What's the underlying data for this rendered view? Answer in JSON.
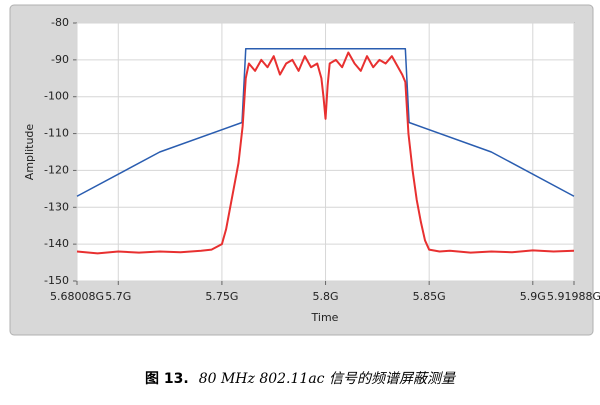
{
  "chart_data": {
    "type": "line",
    "x_label": "Time",
    "y_label": "Amplitude",
    "xlim": [
      5.68008,
      5.91988
    ],
    "ylim": [
      -150,
      -80
    ],
    "xticks": [
      {
        "value": 5.68008,
        "label": "5.68008G"
      },
      {
        "value": 5.7,
        "label": "5.7G"
      },
      {
        "value": 5.75,
        "label": "5.75G"
      },
      {
        "value": 5.8,
        "label": "5.8G"
      },
      {
        "value": 5.85,
        "label": "5.85G"
      },
      {
        "value": 5.9,
        "label": "5.9G"
      },
      {
        "value": 5.91988,
        "label": "5.91988G"
      }
    ],
    "yticks": [
      -80,
      -90,
      -100,
      -110,
      -120,
      -130,
      -140,
      -150
    ],
    "grid": true,
    "series": [
      {
        "color": "#2a5db0",
        "x": [
          5.68008,
          5.72,
          5.7597,
          5.7615,
          5.8385,
          5.8403,
          5.88,
          5.91988
        ],
        "values": [
          -127,
          -115,
          -107,
          -87,
          -87,
          -107,
          -115,
          -127
        ]
      },
      {
        "color": "#e83030",
        "x": [
          5.68008,
          5.69,
          5.7,
          5.71,
          5.72,
          5.73,
          5.74,
          5.745,
          5.75,
          5.752,
          5.754,
          5.756,
          5.758,
          5.76,
          5.7615,
          5.763,
          5.766,
          5.769,
          5.772,
          5.775,
          5.778,
          5.781,
          5.784,
          5.787,
          5.79,
          5.793,
          5.796,
          5.798,
          5.799,
          5.8,
          5.801,
          5.802,
          5.805,
          5.808,
          5.811,
          5.814,
          5.817,
          5.82,
          5.823,
          5.826,
          5.829,
          5.832,
          5.835,
          5.837,
          5.8385,
          5.84,
          5.842,
          5.844,
          5.846,
          5.848,
          5.85,
          5.855,
          5.86,
          5.87,
          5.88,
          5.89,
          5.9,
          5.91,
          5.91988
        ],
        "values": [
          -142,
          -142.5,
          -142,
          -142.3,
          -142,
          -142.2,
          -141.8,
          -141.5,
          -140,
          -136,
          -130,
          -124,
          -118,
          -108,
          -95,
          -91,
          -93,
          -90,
          -92,
          -89,
          -94,
          -91,
          -90,
          -93,
          -89,
          -92,
          -91,
          -95,
          -100,
          -106,
          -97,
          -91,
          -90,
          -92,
          -88,
          -91,
          -93,
          -89,
          -92,
          -90,
          -91,
          -89,
          -92,
          -94,
          -96,
          -110,
          -120,
          -128,
          -134,
          -139,
          -141.5,
          -142,
          -141.8,
          -142.3,
          -142,
          -142.2,
          -141.7,
          -142,
          -141.8
        ]
      }
    ]
  },
  "caption": {
    "label": "图 13.",
    "text": "80 MHz 802.11ac 信号的频谱屏蔽测量"
  }
}
